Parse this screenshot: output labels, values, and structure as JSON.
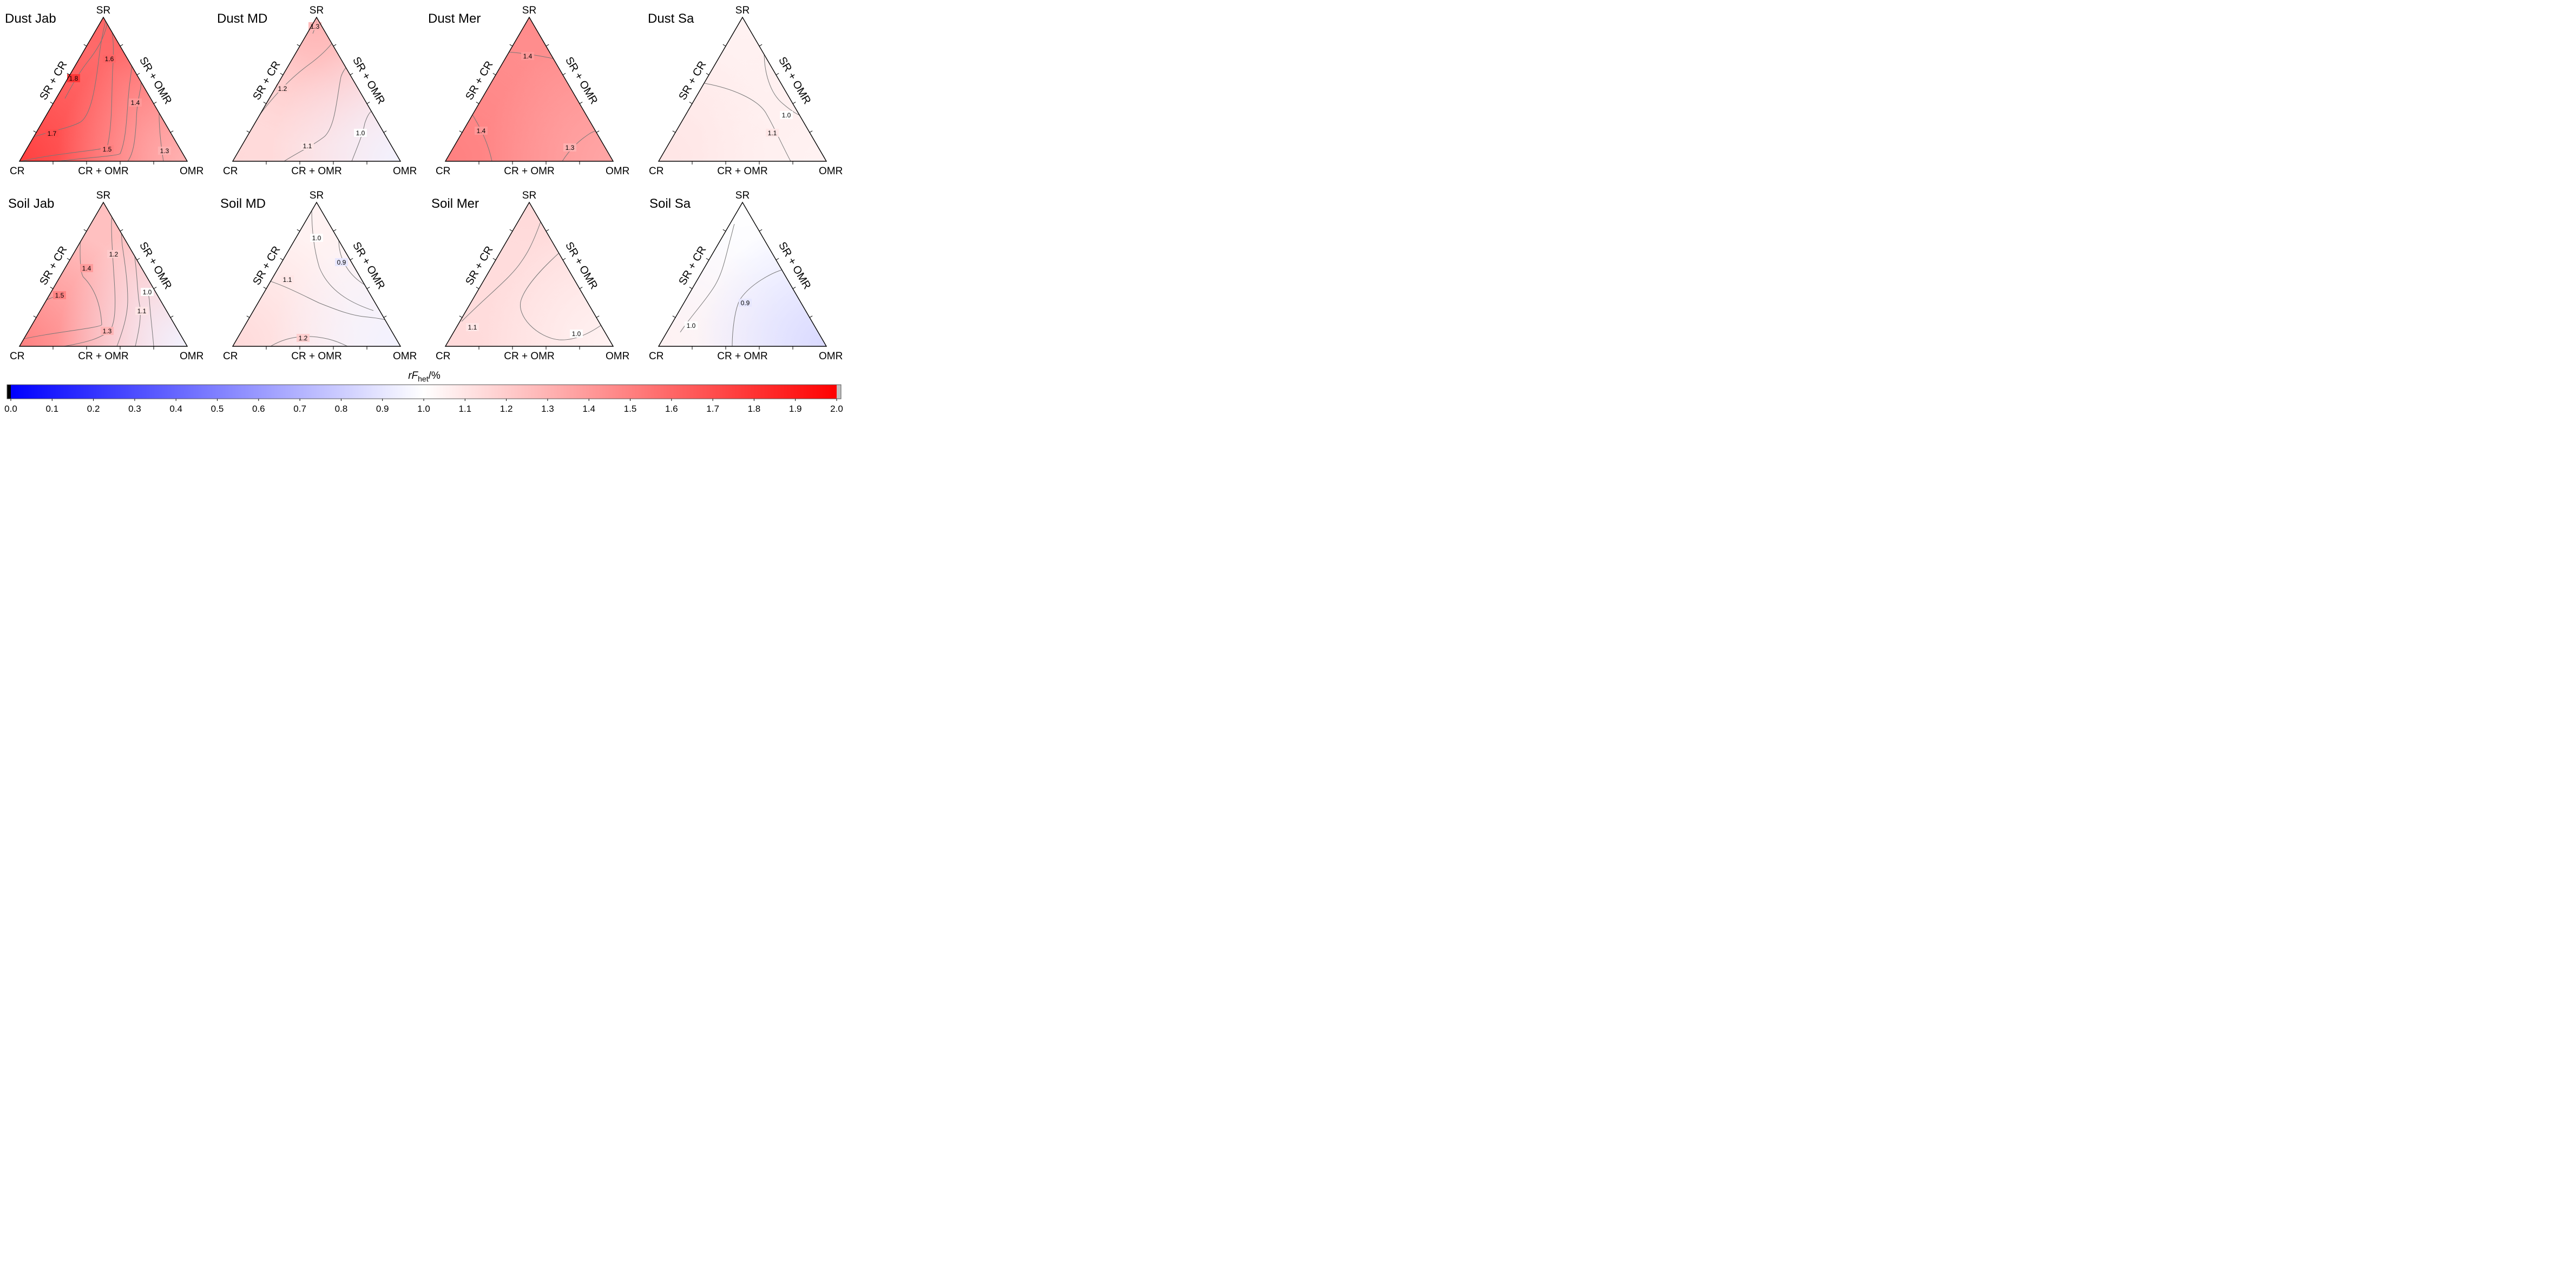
{
  "colorbar": {
    "title": "rF",
    "title_sub": "het",
    "title_unit": "/%",
    "min": 0.0,
    "max": 2.0,
    "midpoint": 1.0,
    "ticks": [
      "0.0",
      "0.1",
      "0.2",
      "0.3",
      "0.4",
      "0.5",
      "0.6",
      "0.7",
      "0.8",
      "0.9",
      "1.0",
      "1.1",
      "1.2",
      "1.3",
      "1.4",
      "1.5",
      "1.6",
      "1.7",
      "1.8",
      "1.9",
      "2.0"
    ],
    "colors": {
      "low": "#0000ff",
      "mid": "#ffffff",
      "high": "#ff0000",
      "under": "#000000",
      "over": "#c0c0c0"
    }
  },
  "vertex_labels": {
    "top": "SR",
    "left": "CR",
    "right": "OMR"
  },
  "edge_labels": {
    "left": "SR + CR",
    "right": "SR + OMR",
    "bottom": "CR + OMR"
  },
  "chart_data": [
    {
      "type": "heatmap",
      "subtype": "ternary",
      "title": "Dust Jab",
      "corner_values": {
        "SR": 1.6,
        "CR": 1.75,
        "OMR": 1.3
      },
      "contours": [
        {
          "level": "1.8"
        },
        {
          "level": "1.7"
        },
        {
          "level": "1.6"
        },
        {
          "level": "1.5"
        },
        {
          "level": "1.4"
        },
        {
          "level": "1.3"
        }
      ]
    },
    {
      "type": "heatmap",
      "subtype": "ternary",
      "title": "Dust MD",
      "corner_values": {
        "SR": 1.3,
        "CR": 1.15,
        "OMR": 0.95
      },
      "contours": [
        {
          "level": "1.3"
        },
        {
          "level": "1.2"
        },
        {
          "level": "1.1"
        },
        {
          "level": "1.0"
        }
      ]
    },
    {
      "type": "heatmap",
      "subtype": "ternary",
      "title": "Dust Mer",
      "corner_values": {
        "SR": 1.45,
        "CR": 1.5,
        "OMR": 1.35
      },
      "contours": [
        {
          "level": "1.4"
        },
        {
          "level": "1.4"
        },
        {
          "level": "1.3"
        }
      ]
    },
    {
      "type": "heatmap",
      "subtype": "ternary",
      "title": "Dust Sa",
      "corner_values": {
        "SR": 1.05,
        "CR": 1.1,
        "OMR": 1.05
      },
      "contours": [
        {
          "level": "1.0"
        },
        {
          "level": "1.1"
        }
      ]
    },
    {
      "type": "heatmap",
      "subtype": "ternary",
      "title": "Soil Jab",
      "corner_values": {
        "SR": 1.25,
        "CR": 1.5,
        "OMR": 0.95
      },
      "contours": [
        {
          "level": "1.5"
        },
        {
          "level": "1.4"
        },
        {
          "level": "1.3"
        },
        {
          "level": "1.2"
        },
        {
          "level": "1.1"
        },
        {
          "level": "1.0"
        }
      ]
    },
    {
      "type": "heatmap",
      "subtype": "ternary",
      "title": "Soil MD",
      "corner_values": {
        "SR": 1.05,
        "CR": 1.15,
        "OMR": 0.95
      },
      "contours": [
        {
          "level": "1.0"
        },
        {
          "level": "0.9"
        },
        {
          "level": "1.1"
        },
        {
          "level": "1.2"
        }
      ]
    },
    {
      "type": "heatmap",
      "subtype": "ternary",
      "title": "Soil Mer",
      "corner_values": {
        "SR": 1.15,
        "CR": 1.15,
        "OMR": 1.05
      },
      "contours": [
        {
          "level": "1.1"
        },
        {
          "level": "1.0"
        }
      ]
    },
    {
      "type": "heatmap",
      "subtype": "ternary",
      "title": "Soil Sa",
      "corner_values": {
        "SR": 1.0,
        "CR": 1.05,
        "OMR": 0.85
      },
      "contours": [
        {
          "level": "1.0"
        },
        {
          "level": "0.9"
        }
      ]
    }
  ]
}
